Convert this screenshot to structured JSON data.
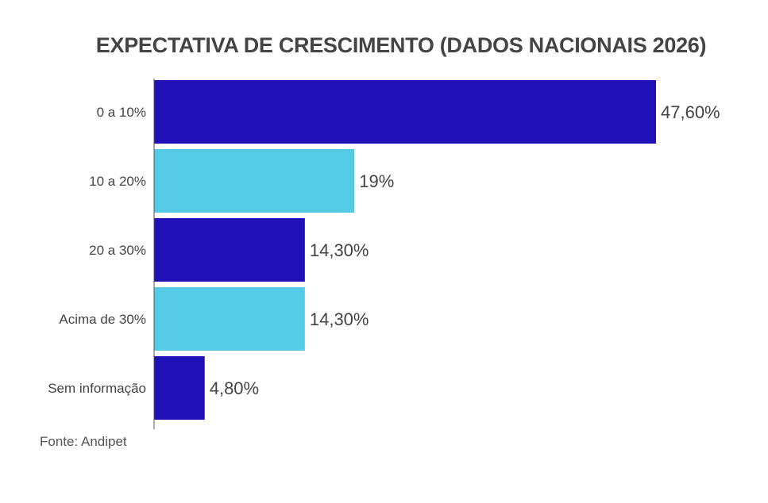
{
  "chart_data": {
    "type": "bar",
    "orientation": "horizontal",
    "title": "EXPECTATIVA DE CRESCIMENTO (DADOS NACIONAIS 2026)",
    "categories": [
      "0 a 10%",
      "10 a 20%",
      "20 a 30%",
      "Acima de 30%",
      "Sem informação"
    ],
    "values": [
      47.6,
      19,
      14.3,
      14.3,
      4.8
    ],
    "data_labels": [
      "47,60%",
      "19%",
      "14,30%",
      "14,30%",
      "4,80%"
    ],
    "colors": [
      "#2010b8",
      "#55cbe8",
      "#2010b8",
      "#55cbe8",
      "#2010b8"
    ],
    "xlabel": "",
    "ylabel": "",
    "xlim": [
      0,
      50
    ],
    "grid": false,
    "source": "Fonte: Andipet"
  }
}
